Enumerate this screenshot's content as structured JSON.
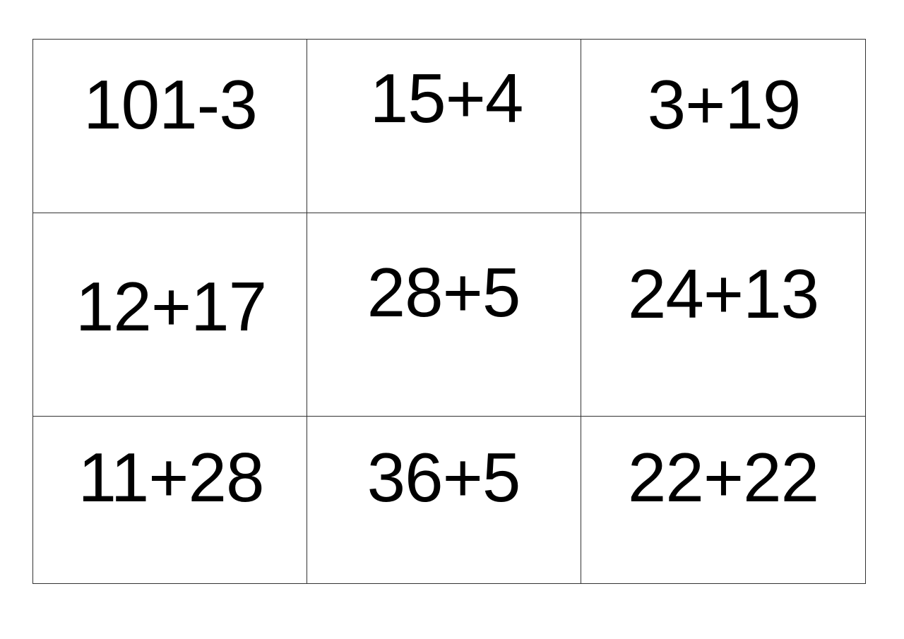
{
  "table": {
    "rows": [
      [
        "101-3",
        "15+4",
        "3+19"
      ],
      [
        "12+17",
        "28+5",
        "24+13"
      ],
      [
        "11+28",
        "36+5",
        "22+22"
      ]
    ]
  }
}
